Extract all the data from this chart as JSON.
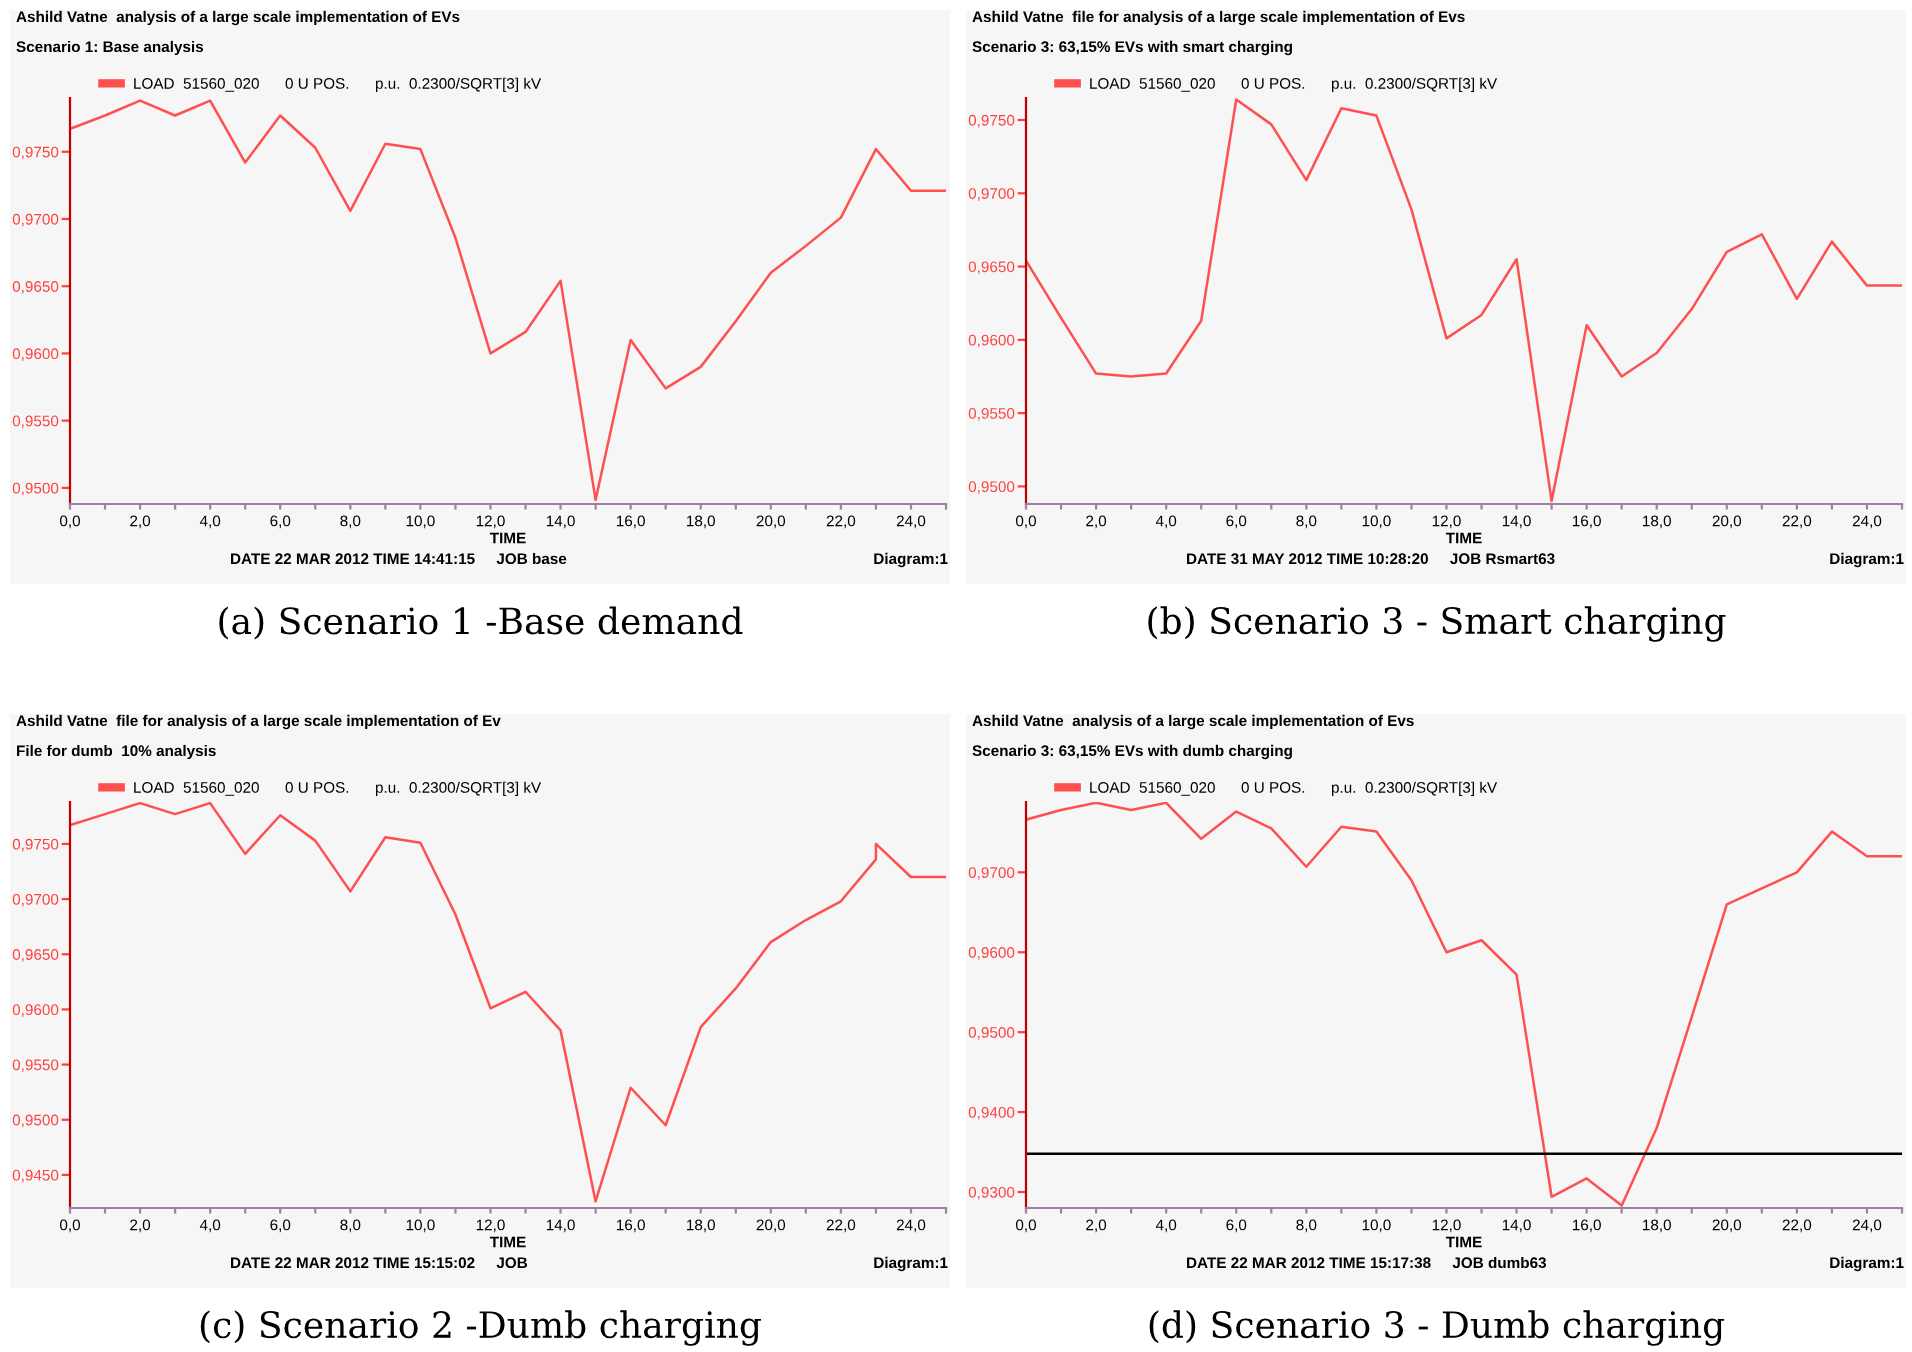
{
  "chart_data": [
    {
      "type": "line",
      "title": "Ashild Vatne  analysis of a large scale implementation of EVs",
      "subtitle": "Scenario 1: Base analysis",
      "xlabel": "TIME",
      "legend": "top left",
      "x": [
        0,
        1,
        2,
        3,
        4,
        5,
        6,
        7,
        8,
        9,
        10,
        11,
        12,
        13,
        14,
        15,
        16,
        17,
        18,
        19,
        20,
        21,
        22,
        23,
        24,
        25
      ],
      "series": [
        {
          "name": "LOAD  51560_020      0 U POS.      p.u.  0.2300/SQRT[3] kV",
          "color": "#ff5050",
          "values": [
            0.9767,
            0.9777,
            0.9788,
            0.9777,
            0.9788,
            0.9742,
            0.9777,
            0.9753,
            0.9706,
            0.9756,
            0.9752,
            0.9686,
            0.96,
            0.9616,
            0.9654,
            0.9491,
            0.961,
            0.9574,
            0.959,
            0.9624,
            0.966,
            0.968,
            0.9701,
            0.9752,
            0.9721,
            0.9721
          ]
        }
      ],
      "xlim": [
        0,
        25
      ],
      "xticks": [
        {
          "value": 0,
          "label": "0,0"
        },
        {
          "value": 1,
          "label": null
        },
        {
          "value": 2,
          "label": "2,0"
        },
        {
          "value": 3,
          "label": null
        },
        {
          "value": 4,
          "label": "4,0"
        },
        {
          "value": 5,
          "label": null
        },
        {
          "value": 6,
          "label": "6,0"
        },
        {
          "value": 7,
          "label": null
        },
        {
          "value": 8,
          "label": "8,0"
        },
        {
          "value": 9,
          "label": null
        },
        {
          "value": 10,
          "label": "10,0"
        },
        {
          "value": 11,
          "label": null
        },
        {
          "value": 12,
          "label": "12,0"
        },
        {
          "value": 13,
          "label": null
        },
        {
          "value": 14,
          "label": "14,0"
        },
        {
          "value": 15,
          "label": null
        },
        {
          "value": 16,
          "label": "16,0"
        },
        {
          "value": 17,
          "label": null
        },
        {
          "value": 18,
          "label": "18,0"
        },
        {
          "value": 19,
          "label": null
        },
        {
          "value": 20,
          "label": "20,0"
        },
        {
          "value": 21,
          "label": null
        },
        {
          "value": 22,
          "label": "22,0"
        },
        {
          "value": 23,
          "label": null
        },
        {
          "value": 24,
          "label": "24,0"
        },
        {
          "value": 25,
          "label": null
        }
      ],
      "ylim": [
        0.9488,
        0.979
      ],
      "yticks": [
        {
          "value": 0.95,
          "label": "0,9500"
        },
        {
          "value": 0.955,
          "label": "0,9550"
        },
        {
          "value": 0.96,
          "label": "0,9600"
        },
        {
          "value": 0.965,
          "label": "0,9650"
        },
        {
          "value": 0.97,
          "label": "0,9700"
        },
        {
          "value": 0.975,
          "label": "0,9750"
        }
      ],
      "annotations": [
        "DATE 22 MAR 2012 TIME 14:41:15     JOB base",
        "Diagram:1",
        "(a) Scenario 1 -Base demand"
      ]
    },
    {
      "type": "line",
      "title": "Ashild Vatne  file for analysis of a large scale implementation of Evs",
      "subtitle": "Scenario 3: 63,15% EVs with smart charging",
      "xlabel": "TIME",
      "legend": "top left",
      "x": [
        0,
        1,
        2,
        3,
        4,
        5,
        6,
        7,
        8,
        9,
        10,
        11,
        12,
        13,
        14,
        15,
        16,
        17,
        18,
        19,
        20,
        21,
        22,
        23,
        24,
        25
      ],
      "series": [
        {
          "name": "LOAD  51560_020      0 U POS.      p.u.  0.2300/SQRT[3] kV",
          "color": "#ff5050",
          "values": [
            0.9654,
            0.9615,
            0.9577,
            0.9575,
            0.9577,
            0.9613,
            0.9764,
            0.9747,
            0.9709,
            0.9758,
            0.9753,
            0.9689,
            0.9601,
            0.9617,
            0.9655,
            0.949,
            0.961,
            0.9575,
            0.9591,
            0.9621,
            0.966,
            0.9672,
            0.9628,
            0.9667,
            0.9637,
            0.9637
          ]
        }
      ],
      "xlim": [
        0,
        25
      ],
      "xticks": [
        {
          "value": 0,
          "label": "0,0"
        },
        {
          "value": 1,
          "label": null
        },
        {
          "value": 2,
          "label": "2,0"
        },
        {
          "value": 3,
          "label": null
        },
        {
          "value": 4,
          "label": "4,0"
        },
        {
          "value": 5,
          "label": null
        },
        {
          "value": 6,
          "label": "6,0"
        },
        {
          "value": 7,
          "label": null
        },
        {
          "value": 8,
          "label": "8,0"
        },
        {
          "value": 9,
          "label": null
        },
        {
          "value": 10,
          "label": "10,0"
        },
        {
          "value": 11,
          "label": null
        },
        {
          "value": 12,
          "label": "12,0"
        },
        {
          "value": 13,
          "label": null
        },
        {
          "value": 14,
          "label": "14,0"
        },
        {
          "value": 15,
          "label": null
        },
        {
          "value": 16,
          "label": "16,0"
        },
        {
          "value": 17,
          "label": null
        },
        {
          "value": 18,
          "label": "18,0"
        },
        {
          "value": 19,
          "label": null
        },
        {
          "value": 20,
          "label": "20,0"
        },
        {
          "value": 21,
          "label": null
        },
        {
          "value": 22,
          "label": "22,0"
        },
        {
          "value": 23,
          "label": null
        },
        {
          "value": 24,
          "label": "24,0"
        },
        {
          "value": 25,
          "label": null
        }
      ],
      "ylim": [
        0.9488,
        0.9765
      ],
      "yticks": [
        {
          "value": 0.95,
          "label": "0,9500"
        },
        {
          "value": 0.955,
          "label": "0,9550"
        },
        {
          "value": 0.96,
          "label": "0,9600"
        },
        {
          "value": 0.965,
          "label": "0,9650"
        },
        {
          "value": 0.97,
          "label": "0,9700"
        },
        {
          "value": 0.975,
          "label": "0,9750"
        }
      ],
      "annotations": [
        "DATE 31 MAY 2012 TIME 10:28:20     JOB Rsmart63",
        "Diagram:1",
        "(b) Scenario 3 - Smart charging"
      ]
    },
    {
      "type": "line",
      "title": "Ashild Vatne  file for analysis of a large scale implementation of Ev",
      "subtitle": "File for dumb  10% analysis",
      "xlabel": "TIME",
      "legend": "top left",
      "x": [
        0,
        1,
        2,
        3,
        4,
        5,
        6,
        7,
        8,
        9,
        10,
        11,
        12,
        13,
        14,
        15,
        16,
        17,
        18,
        19,
        20,
        21,
        22,
        23,
        23,
        24,
        25
      ],
      "series": [
        {
          "name": "LOAD  51560_020      0 U POS.      p.u.  0.2300/SQRT[3] kV",
          "color": "#ff5050",
          "values": [
            0.9767,
            0.9777,
            0.9787,
            0.9777,
            0.9787,
            0.9741,
            0.9776,
            0.9753,
            0.9707,
            0.9756,
            0.9751,
            0.9686,
            0.9601,
            0.9616,
            0.9581,
            0.9426,
            0.9529,
            0.9495,
            0.9584,
            0.9619,
            0.9661,
            0.9681,
            0.9698,
            0.9736,
            0.975,
            0.972,
            0.972
          ]
        }
      ],
      "xlim": [
        0,
        25
      ],
      "xticks": [
        {
          "value": 0,
          "label": "0,0"
        },
        {
          "value": 1,
          "label": null
        },
        {
          "value": 2,
          "label": "2,0"
        },
        {
          "value": 3,
          "label": null
        },
        {
          "value": 4,
          "label": "4,0"
        },
        {
          "value": 5,
          "label": null
        },
        {
          "value": 6,
          "label": "6,0"
        },
        {
          "value": 7,
          "label": null
        },
        {
          "value": 8,
          "label": "8,0"
        },
        {
          "value": 9,
          "label": null
        },
        {
          "value": 10,
          "label": "10,0"
        },
        {
          "value": 11,
          "label": null
        },
        {
          "value": 12,
          "label": "12,0"
        },
        {
          "value": 13,
          "label": null
        },
        {
          "value": 14,
          "label": "14,0"
        },
        {
          "value": 15,
          "label": null
        },
        {
          "value": 16,
          "label": "16,0"
        },
        {
          "value": 17,
          "label": null
        },
        {
          "value": 18,
          "label": "18,0"
        },
        {
          "value": 19,
          "label": null
        },
        {
          "value": 20,
          "label": "20,0"
        },
        {
          "value": 21,
          "label": null
        },
        {
          "value": 22,
          "label": "22,0"
        },
        {
          "value": 23,
          "label": null
        },
        {
          "value": 24,
          "label": "24,0"
        },
        {
          "value": 25,
          "label": null
        }
      ],
      "ylim": [
        0.942,
        0.9788
      ],
      "yticks": [
        {
          "value": 0.945,
          "label": "0,9450"
        },
        {
          "value": 0.95,
          "label": "0,9500"
        },
        {
          "value": 0.955,
          "label": "0,9550"
        },
        {
          "value": 0.96,
          "label": "0,9600"
        },
        {
          "value": 0.965,
          "label": "0,9650"
        },
        {
          "value": 0.97,
          "label": "0,9700"
        },
        {
          "value": 0.975,
          "label": "0,9750"
        }
      ],
      "annotations": [
        "DATE 22 MAR 2012 TIME 15:15:02     JOB",
        "Diagram:1",
        "(c) Scenario 2 -Dumb charging"
      ]
    },
    {
      "type": "line",
      "title": "Ashild Vatne  analysis of a large scale implementation of Evs",
      "subtitle": "Scenario 3: 63,15% EVs with dumb charging",
      "xlabel": "TIME",
      "legend": "top left",
      "x": [
        0,
        1,
        2,
        3,
        4,
        5,
        6,
        7,
        8,
        9,
        10,
        11,
        12,
        13,
        14,
        15,
        16,
        17,
        18,
        19,
        20,
        21,
        22,
        23,
        24,
        25
      ],
      "series": [
        {
          "name": "LOAD  51560_020      0 U POS.      p.u.  0.2300/SQRT[3] kV",
          "color": "#ff5050",
          "values": [
            0.9766,
            0.9778,
            0.9787,
            0.9778,
            0.9787,
            0.9742,
            0.9776,
            0.9755,
            0.9707,
            0.9757,
            0.9751,
            0.969,
            0.96,
            0.9615,
            0.9572,
            0.9294,
            0.9317,
            0.9283,
            0.938,
            0.9519,
            0.966,
            0.968,
            0.97,
            0.9751,
            0.972,
            0.972
          ]
        }
      ],
      "xlim": [
        0,
        25
      ],
      "xticks": [
        {
          "value": 0,
          "label": "0,0"
        },
        {
          "value": 1,
          "label": null
        },
        {
          "value": 2,
          "label": "2,0"
        },
        {
          "value": 3,
          "label": null
        },
        {
          "value": 4,
          "label": "4,0"
        },
        {
          "value": 5,
          "label": null
        },
        {
          "value": 6,
          "label": "6,0"
        },
        {
          "value": 7,
          "label": null
        },
        {
          "value": 8,
          "label": "8,0"
        },
        {
          "value": 9,
          "label": null
        },
        {
          "value": 10,
          "label": "10,0"
        },
        {
          "value": 11,
          "label": null
        },
        {
          "value": 12,
          "label": "12,0"
        },
        {
          "value": 13,
          "label": null
        },
        {
          "value": 14,
          "label": "14,0"
        },
        {
          "value": 15,
          "label": null
        },
        {
          "value": 16,
          "label": "16,0"
        },
        {
          "value": 17,
          "label": null
        },
        {
          "value": 18,
          "label": "18,0"
        },
        {
          "value": 19,
          "label": null
        },
        {
          "value": 20,
          "label": "20,0"
        },
        {
          "value": 21,
          "label": null
        },
        {
          "value": 22,
          "label": "22,0"
        },
        {
          "value": 23,
          "label": null
        },
        {
          "value": 24,
          "label": "24,0"
        },
        {
          "value": 25,
          "label": null
        }
      ],
      "ylim": [
        0.928,
        0.9788
      ],
      "yticks": [
        {
          "value": 0.93,
          "label": "0,9300"
        },
        {
          "value": 0.94,
          "label": "0,9400"
        },
        {
          "value": 0.95,
          "label": "0,9500"
        },
        {
          "value": 0.96,
          "label": "0,9600"
        },
        {
          "value": 0.97,
          "label": "0,9700"
        }
      ],
      "ref_lines": [
        {
          "axis": "y",
          "value": 0.9348,
          "color": "#000000"
        }
      ],
      "annotations": [
        "DATE 22 MAR 2012 TIME 15:17:38     JOB dumb63",
        "Diagram:1",
        "(d) Scenario 3 - Dumb charging"
      ]
    }
  ]
}
